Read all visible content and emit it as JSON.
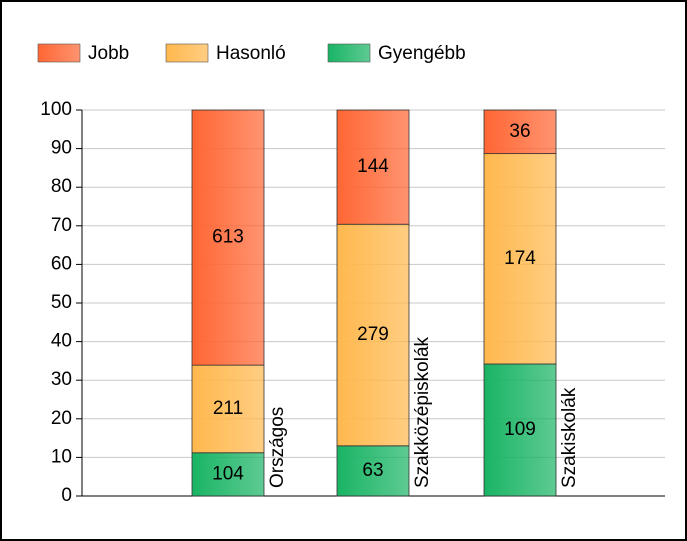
{
  "chart_data": {
    "type": "bar",
    "stacked": true,
    "categories": [
      "Országos",
      "Szakközépiskolák",
      "Szakiskolák"
    ],
    "series": [
      {
        "name": "Jobb",
        "color": "#ff6633",
        "values": [
          66.1,
          29.6,
          11.3
        ],
        "value_labels": [
          "613",
          "144",
          "36"
        ]
      },
      {
        "name": "Hasonló",
        "color": "#ffb84d",
        "values": [
          22.7,
          57.4,
          54.5
        ],
        "value_labels": [
          "211",
          "279",
          "174"
        ]
      },
      {
        "name": "Gyengébb",
        "color": "#19b464",
        "values": [
          11.2,
          13.0,
          34.2
        ],
        "value_labels": [
          "104",
          "63",
          "109"
        ]
      }
    ],
    "ylim": [
      0,
      100
    ],
    "yticks": [
      0,
      10,
      20,
      30,
      40,
      50,
      60,
      70,
      80,
      90,
      100
    ],
    "grid": true
  }
}
